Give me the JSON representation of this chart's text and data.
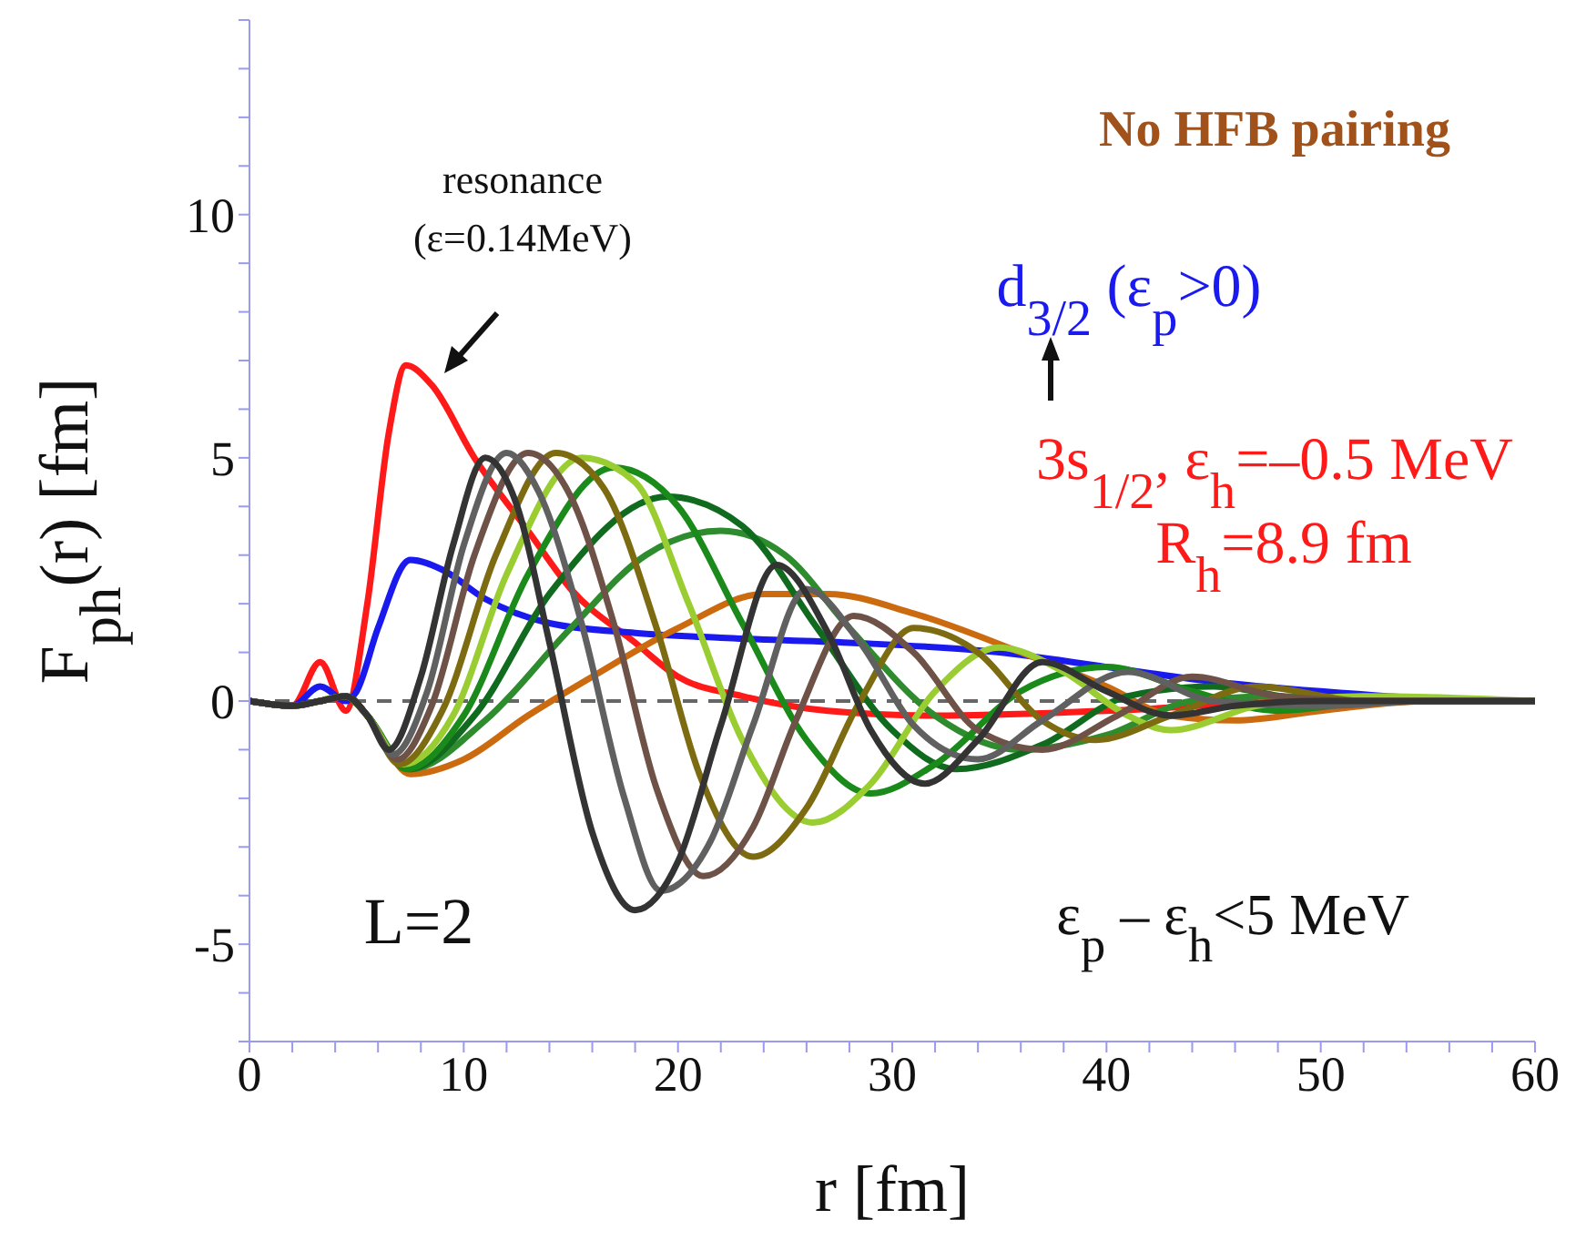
{
  "chart_data": {
    "type": "line",
    "xlabel": "r  [fm]",
    "ylabel": "F$_{ph}$(r)  [fm]",
    "xlim": [
      0,
      60
    ],
    "xticks": [
      0,
      {
        "value": 2,
        "label": null
      },
      {
        "value": 4,
        "label": null
      },
      {
        "value": 6,
        "label": null
      },
      {
        "value": 8,
        "label": null
      },
      10,
      {
        "value": 12,
        "label": null
      },
      {
        "value": 14,
        "label": null
      },
      {
        "value": 16,
        "label": null
      },
      {
        "value": 18,
        "label": null
      },
      20,
      {
        "value": 22,
        "label": null
      },
      {
        "value": 24,
        "label": null
      },
      {
        "value": 26,
        "label": null
      },
      {
        "value": 28,
        "label": null
      },
      30,
      {
        "value": 32,
        "label": null
      },
      {
        "value": 34,
        "label": null
      },
      {
        "value": 36,
        "label": null
      },
      {
        "value": 38,
        "label": null
      },
      40,
      {
        "value": 42,
        "label": null
      },
      {
        "value": 44,
        "label": null
      },
      {
        "value": 46,
        "label": null
      },
      {
        "value": 48,
        "label": null
      },
      50,
      {
        "value": 52,
        "label": null
      },
      {
        "value": 54,
        "label": null
      },
      {
        "value": 56,
        "label": null
      },
      {
        "value": 58,
        "label": null
      },
      60
    ],
    "ylim": [
      -7,
      14
    ],
    "yticks": [
      {
        "value": -7,
        "label": null
      },
      {
        "value": -6,
        "label": null
      },
      -5,
      {
        "value": -4,
        "label": null
      },
      {
        "value": -3,
        "label": null
      },
      {
        "value": -2,
        "label": null
      },
      {
        "value": -1,
        "label": null
      },
      0,
      {
        "value": 1,
        "label": null
      },
      {
        "value": 2,
        "label": null
      },
      {
        "value": 3,
        "label": null
      },
      {
        "value": 4,
        "label": null
      },
      5,
      {
        "value": 6,
        "label": null
      },
      {
        "value": 7,
        "label": null
      },
      {
        "value": 8,
        "label": null
      },
      {
        "value": 9,
        "label": null
      },
      10,
      {
        "value": 11,
        "label": null
      },
      {
        "value": 12,
        "label": null
      },
      {
        "value": 13,
        "label": null
      },
      {
        "value": 14,
        "label": null
      }
    ],
    "marker": "none",
    "line_style": "solid",
    "ref_lines": [
      {
        "axis": "y",
        "value": 0,
        "color": "#666666",
        "line_style": "dashed"
      }
    ],
    "annotations": [
      "resonance\n(ε=0.14MeV)",
      "No HFB pairing",
      "d$_{3/2}$ (ε$_{p}$>0)",
      "3s$_{1/2}$, ε$_{h}$=–0.5 MeV",
      "R$_{h}$=8.9 fm",
      "L=2",
      "ε$_{p}$ – ε$_{h}$<5 MeV"
    ],
    "series": [
      {
        "color": "#ff1a1a",
        "x": [
          0,
          2,
          3.3,
          4.5,
          5.5,
          6.5,
          7.3,
          8.5,
          10.5,
          13,
          15,
          18,
          20,
          23,
          27,
          32,
          40,
          50,
          60
        ],
        "values": [
          0,
          -0.1,
          0.8,
          -0.2,
          2,
          5.5,
          6.9,
          6.5,
          5,
          3.5,
          2.3,
          1.2,
          0.5,
          0.1,
          -0.2,
          -0.3,
          -0.2,
          0,
          0
        ]
      },
      {
        "color": "#1a1aee",
        "x": [
          0,
          2,
          3.3,
          4.5,
          5,
          6,
          7.5,
          9,
          11,
          14,
          18,
          22,
          28,
          35,
          40,
          45,
          50,
          55,
          60
        ],
        "values": [
          0,
          -0.1,
          0.3,
          0,
          0.2,
          1.5,
          2.9,
          2.7,
          2.1,
          1.6,
          1.4,
          1.3,
          1.2,
          1.0,
          0.7,
          0.4,
          0.2,
          0.05,
          0
        ]
      },
      {
        "color": "#cc6a10",
        "x": [
          3.3,
          4.5,
          5.5,
          7.5,
          10,
          13,
          16,
          20,
          24,
          27,
          31,
          36,
          40,
          43,
          46,
          50,
          55,
          60
        ],
        "values": [
          0,
          0.1,
          -0.3,
          -1.5,
          -1.2,
          -0.3,
          0.5,
          1.5,
          2.2,
          2.2,
          1.8,
          1.0,
          0.3,
          -0.3,
          -0.4,
          -0.2,
          0,
          0
        ]
      },
      {
        "color": "#2e8b2e",
        "x": [
          0,
          2,
          3.3,
          4.5,
          5.5,
          7.5,
          11,
          15,
          18.5,
          22,
          25,
          28,
          32,
          36,
          40,
          44,
          48,
          53,
          60
        ],
        "values": [
          0,
          -0.1,
          0,
          0.1,
          -0.3,
          -1.4,
          -0.4,
          1.5,
          3.0,
          3.5,
          3.0,
          1.5,
          -0.3,
          -1.0,
          -0.7,
          0,
          0.1,
          0,
          0
        ]
      },
      {
        "color": "#116b1e",
        "x": [
          0,
          2,
          3.3,
          4.5,
          5.5,
          7.4,
          10.5,
          14,
          19.5,
          23,
          26.5,
          30,
          33,
          37,
          41,
          45,
          50,
          55,
          60
        ],
        "values": [
          0,
          -0.1,
          0,
          0.1,
          -0.3,
          -1.4,
          -0.3,
          2.2,
          4.2,
          3.6,
          1.5,
          -0.6,
          -1.4,
          -0.9,
          0.1,
          0.3,
          0,
          0,
          0
        ]
      },
      {
        "color": "#1a8a1a",
        "x": [
          3.3,
          4.5,
          5.5,
          7.3,
          10,
          13,
          17,
          20,
          23,
          26,
          29,
          32,
          36,
          40,
          44,
          48,
          53,
          60
        ],
        "values": [
          0,
          0.1,
          -0.3,
          -1.4,
          -0.3,
          2.6,
          4.8,
          4.0,
          1.6,
          -0.8,
          -1.9,
          -1.3,
          0.2,
          0.7,
          0.2,
          -0.2,
          0,
          0
        ]
      },
      {
        "color": "#9acd32",
        "x": [
          3.3,
          4.5,
          5.5,
          7.2,
          9.5,
          12,
          15.5,
          18,
          20.5,
          23,
          26.3,
          29,
          32,
          35,
          38,
          41,
          43,
          47,
          52,
          60
        ],
        "values": [
          0,
          0.1,
          -0.3,
          -1.3,
          -0.3,
          2.6,
          5.0,
          4.5,
          2.0,
          -0.8,
          -2.5,
          -1.7,
          0.2,
          1.1,
          0.6,
          -0.3,
          -0.6,
          -0.1,
          0.1,
          0
        ]
      },
      {
        "color": "#7d6b12",
        "x": [
          0,
          2,
          3.3,
          4.5,
          5.5,
          7,
          9,
          11.5,
          14.3,
          16.5,
          19,
          21,
          23.5,
          26,
          28.5,
          31,
          34,
          37,
          39.5,
          43,
          47,
          52,
          60
        ],
        "values": [
          0,
          -0.1,
          0,
          0.1,
          -0.3,
          -1.3,
          -0.2,
          3,
          5.1,
          4.4,
          1.5,
          -1.5,
          -3.2,
          -2.2,
          0,
          1.5,
          1.0,
          -0.4,
          -0.8,
          -0.3,
          0.3,
          0,
          0
        ]
      },
      {
        "color": "#6e5247",
        "x": [
          0,
          2,
          3.3,
          4.5,
          5.5,
          6.9,
          8.5,
          10.5,
          13,
          15,
          17,
          19,
          21.2,
          23.5,
          25.5,
          28.2,
          31,
          34,
          37,
          40.5,
          44,
          48,
          53,
          60
        ],
        "values": [
          0,
          -0.1,
          0,
          0.1,
          -0.3,
          -1.2,
          -0.1,
          3,
          5.1,
          4.2,
          1.6,
          -1.8,
          -3.6,
          -2.6,
          -0.4,
          1.75,
          1.0,
          -0.6,
          -1.0,
          -0.3,
          0.5,
          0.1,
          0,
          0
        ]
      },
      {
        "color": "#606060",
        "x": [
          0,
          2,
          3.3,
          4.5,
          5.5,
          6.7,
          8.3,
          10,
          12,
          13.5,
          15.5,
          17.5,
          19.2,
          21.5,
          23.5,
          26,
          28.5,
          31,
          34,
          37,
          41,
          45,
          50,
          55,
          60
        ],
        "values": [
          0,
          -0.1,
          0,
          0.1,
          -0.3,
          -1.1,
          0.2,
          3.2,
          5.1,
          4.3,
          1.6,
          -2.0,
          -3.9,
          -2.9,
          -0.5,
          2.3,
          1.2,
          -0.5,
          -1.2,
          -0.4,
          0.6,
          0,
          -0.1,
          0,
          0
        ]
      },
      {
        "color": "#333333",
        "x": [
          0,
          2,
          3.3,
          4.5,
          5.5,
          6.5,
          8,
          9.5,
          11,
          12.5,
          14,
          16,
          18,
          20,
          22,
          24.6,
          27,
          29,
          31.5,
          34,
          37,
          40,
          43,
          46,
          50,
          55,
          60
        ],
        "values": [
          0,
          -0.1,
          0,
          0.1,
          -0.3,
          -1.0,
          0.5,
          3.2,
          5.0,
          4.0,
          1.2,
          -2.7,
          -4.3,
          -3.3,
          -0.5,
          2.8,
          1.4,
          -0.6,
          -1.7,
          -0.8,
          0.8,
          0.2,
          -0.3,
          -0.1,
          0,
          0,
          0
        ]
      }
    ]
  }
}
